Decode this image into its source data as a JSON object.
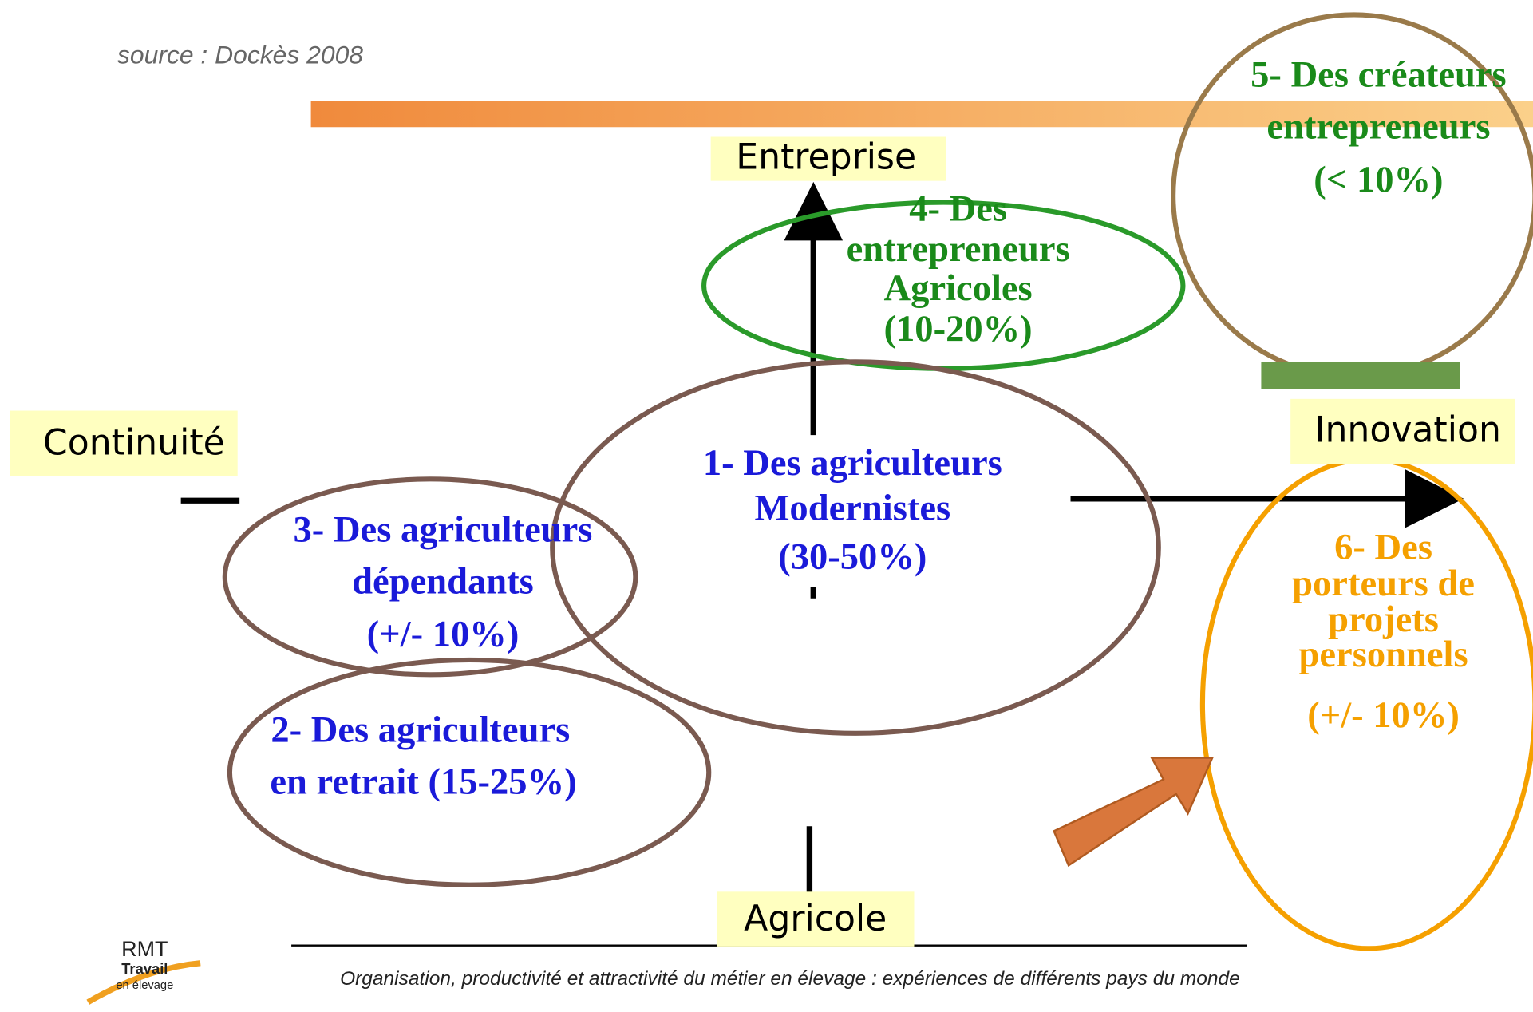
{
  "source": "source : Dockès 2008",
  "axes": {
    "top": "Entreprise",
    "bottom": "Agricole",
    "left": "Continuité",
    "right": "Innovation"
  },
  "groups": [
    {
      "lines": [
        "1- Des agriculteurs",
        "Modernistes",
        "(30-50%)"
      ]
    },
    {
      "lines": [
        "2- Des agriculteurs",
        "en retrait (15-25%)"
      ]
    },
    {
      "lines": [
        "3- Des agriculteurs",
        "dépendants",
        "(+/- 10%)"
      ]
    },
    {
      "lines": [
        "4- Des",
        "entrepreneurs",
        "Agricoles",
        "(10-20%)"
      ]
    },
    {
      "lines": [
        "5- Des créateurs",
        "entrepreneurs",
        "(< 10%)"
      ]
    },
    {
      "lines": [
        "6- Des",
        "porteurs de",
        "projets",
        "personnels",
        "(+/- 10%)"
      ]
    }
  ],
  "footer": "Organisation, productivité et attractivité du métier en élevage : expériences de différents pays du monde",
  "logo": {
    "lines": [
      "RMT",
      "Travail",
      "en élevage"
    ]
  }
}
